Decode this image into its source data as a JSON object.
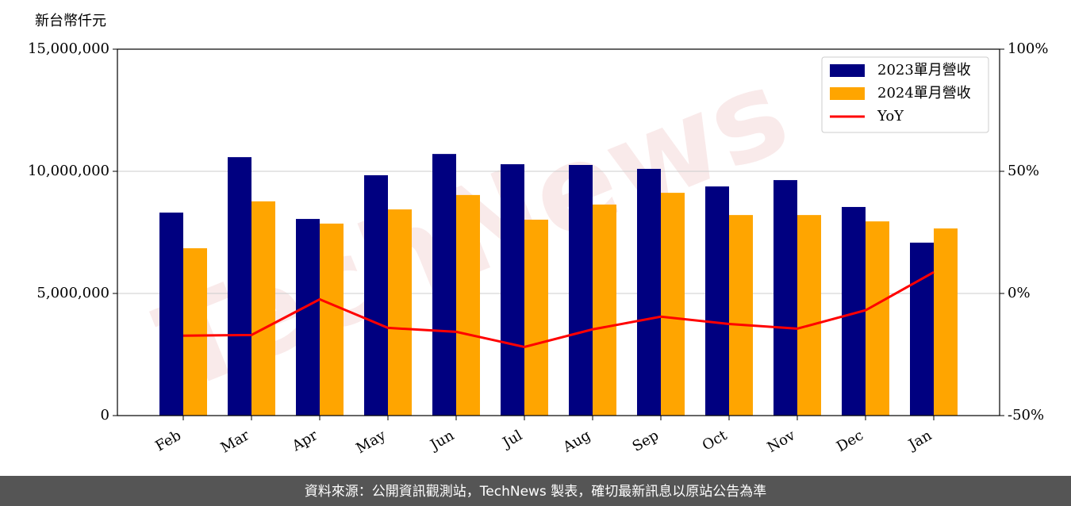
{
  "chart_data": {
    "type": "bar-line",
    "y_label": "新台幣仟元",
    "watermark": "TechNews",
    "source": "資料來源：公開資訊觀測站，TechNews 製表，確切最新訊息以原站公告為準",
    "categories": [
      "Feb",
      "Mar",
      "Apr",
      "May",
      "Jun",
      "Jul",
      "Aug",
      "Sep",
      "Oct",
      "Nov",
      "Dec",
      "Jan"
    ],
    "series": [
      {
        "name": "2023單月營收",
        "type": "bar",
        "axis": "y",
        "color": "#000080",
        "values": [
          8310000,
          10580000,
          8050000,
          9840000,
          10710000,
          10290000,
          10260000,
          10100000,
          9380000,
          9640000,
          8540000,
          7080000
        ]
      },
      {
        "name": "2024單月營收",
        "type": "bar",
        "axis": "y",
        "color": "#ffa500",
        "values": [
          6850000,
          8770000,
          7860000,
          8440000,
          9030000,
          8020000,
          8640000,
          9120000,
          8210000,
          8210000,
          7950000,
          7660000
        ]
      },
      {
        "name": "YoY",
        "type": "line",
        "axis": "y2",
        "color": "#ff0000",
        "values": [
          -17.3,
          -17.0,
          -2.4,
          -14.1,
          -15.7,
          -21.9,
          -14.7,
          -9.5,
          -12.5,
          -14.4,
          -6.9,
          8.7
        ]
      }
    ],
    "ylim": [
      0,
      15000000
    ],
    "yticks": [
      {
        "value": 0,
        "label": "0"
      },
      {
        "value": 5000000,
        "label": "5,000,000"
      },
      {
        "value": 10000000,
        "label": "10,000,000"
      },
      {
        "value": 15000000,
        "label": "15,000,000"
      }
    ],
    "y2lim": [
      -50,
      100
    ],
    "y2ticks": [
      {
        "value": -50,
        "label": "-50%"
      },
      {
        "value": 0,
        "label": "0%"
      },
      {
        "value": 50,
        "label": "50%"
      },
      {
        "value": 100,
        "label": "100%"
      }
    ],
    "grid": true,
    "legend": "upper right"
  }
}
